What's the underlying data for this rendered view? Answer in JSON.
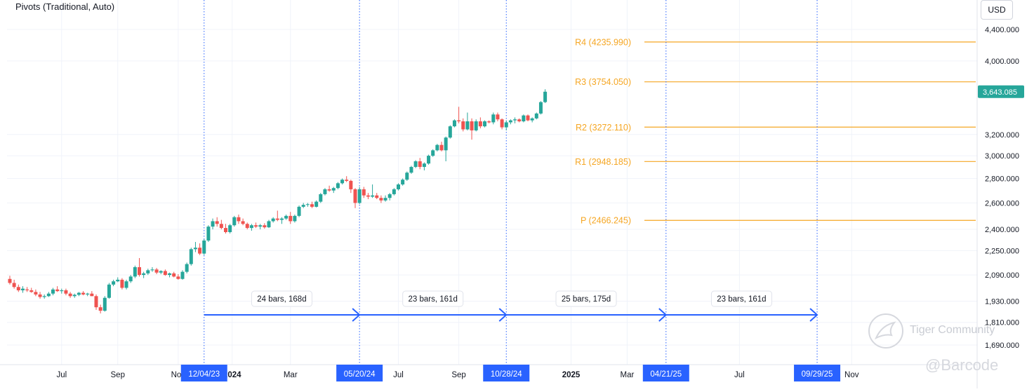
{
  "indicator_label": "Pivots (Traditional, Auto)",
  "currency": "USD",
  "watermark": {
    "community": "Tiger Community",
    "handle": "@Barcode"
  },
  "colors": {
    "up": "#26a69a",
    "down": "#ef5350",
    "pivot": "#f5a623",
    "measure": "#2962ff",
    "date_tag_bg": "#2962ff",
    "price_tag_bg": "#26a69a",
    "grid": "#f0f3fa"
  },
  "chart_data": {
    "type": "candlestick",
    "title": "",
    "y_scale": "log",
    "ylim": [
      1600,
      4800
    ],
    "y_ticks": [
      {
        "value": 4400,
        "label": "4,400.000"
      },
      {
        "value": 4000,
        "label": "4,000.000"
      },
      {
        "value": 3200,
        "label": "3,200.000"
      },
      {
        "value": 3000,
        "label": "3,000.000"
      },
      {
        "value": 2800,
        "label": "2,800.000"
      },
      {
        "value": 2600,
        "label": "2,600.000"
      },
      {
        "value": 2400,
        "label": "2,400.000"
      },
      {
        "value": 2250,
        "label": "2,250.000"
      },
      {
        "value": 2090,
        "label": "2,090.000"
      },
      {
        "value": 1930,
        "label": "1,930.000"
      },
      {
        "value": 1810,
        "label": "1,810.000"
      },
      {
        "value": 1690,
        "label": "1,690.000"
      }
    ],
    "x_labels": [
      {
        "bar": 12,
        "label": "Jul",
        "bold": false
      },
      {
        "bar": 25,
        "label": "Sep",
        "bold": false
      },
      {
        "bar": 39,
        "label": "Nov",
        "bold": false
      },
      {
        "bar": 51.5,
        "label": "2024",
        "bold": true
      },
      {
        "bar": 65,
        "label": "Mar",
        "bold": false
      },
      {
        "bar": 90,
        "label": "Jul",
        "bold": false
      },
      {
        "bar": 104,
        "label": "Sep",
        "bold": false
      },
      {
        "bar": 130,
        "label": "2025",
        "bold": true
      },
      {
        "bar": 143,
        "label": "Mar",
        "bold": false
      },
      {
        "bar": 169,
        "label": "Jul",
        "bold": false
      },
      {
        "bar": 195,
        "label": "Nov",
        "bold": false
      }
    ],
    "pivots": [
      {
        "name": "R4",
        "value": 4235.99,
        "label": "R4 (4235.990)"
      },
      {
        "name": "R3",
        "value": 3754.05,
        "label": "R3 (3754.050)"
      },
      {
        "name": "R2",
        "value": 3272.11,
        "label": "R2 (3272.110)"
      },
      {
        "name": "R1",
        "value": 2948.185,
        "label": "R1 (2948.185)"
      },
      {
        "name": "P",
        "value": 2466.245,
        "label": "P (2466.245)"
      }
    ],
    "pivot_start_bar": 131,
    "vertical_markers": [
      {
        "bar": 45,
        "label": "12/04/23"
      },
      {
        "bar": 81,
        "label": "05/20/24"
      },
      {
        "bar": 115,
        "label": "10/28/24"
      },
      {
        "bar": 152,
        "label": "04/21/25"
      },
      {
        "bar": 187,
        "label": "09/29/25"
      }
    ],
    "measure_segments": [
      {
        "from": 45,
        "to": 81,
        "label": "24 bars, 168d"
      },
      {
        "from": 81,
        "to": 115,
        "label": "23 bars, 161d"
      },
      {
        "from": 115,
        "to": 152,
        "label": "25 bars, 175d"
      },
      {
        "from": 152,
        "to": 187,
        "label": "23 bars, 161d"
      }
    ],
    "last_price": {
      "value": 3643.085,
      "label": "3,643.085"
    },
    "candles": [
      [
        2065,
        2085,
        2030,
        2040
      ],
      [
        2040,
        2060,
        2005,
        2015
      ],
      [
        2015,
        2030,
        1985,
        1995
      ],
      [
        1995,
        2020,
        1980,
        2005
      ],
      [
        2000,
        2015,
        1985,
        1995
      ],
      [
        1995,
        2010,
        1980,
        1985
      ],
      [
        1985,
        2000,
        1960,
        1970
      ],
      [
        1970,
        1985,
        1945,
        1955
      ],
      [
        1955,
        1970,
        1945,
        1960
      ],
      [
        1960,
        1985,
        1955,
        1975
      ],
      [
        1975,
        2010,
        1965,
        2000
      ],
      [
        2000,
        2020,
        1985,
        1990
      ],
      [
        1990,
        2005,
        1975,
        1995
      ],
      [
        1995,
        2005,
        1965,
        1975
      ],
      [
        1975,
        1985,
        1950,
        1960
      ],
      [
        1960,
        1975,
        1950,
        1968
      ],
      [
        1968,
        1985,
        1960,
        1980
      ],
      [
        1980,
        1990,
        1965,
        1970
      ],
      [
        1970,
        1980,
        1960,
        1975
      ],
      [
        1975,
        1990,
        1960,
        1960
      ],
      [
        1960,
        1970,
        1880,
        1895
      ],
      [
        1895,
        1910,
        1860,
        1875
      ],
      [
        1875,
        1960,
        1870,
        1950
      ],
      [
        1950,
        2040,
        1945,
        2030
      ],
      [
        2030,
        2060,
        2020,
        2050
      ],
      [
        2050,
        2075,
        2045,
        2060
      ],
      [
        2060,
        2070,
        2000,
        2010
      ],
      [
        2010,
        2060,
        2000,
        2050
      ],
      [
        2050,
        2090,
        2040,
        2080
      ],
      [
        2080,
        2150,
        2070,
        2140
      ],
      [
        2140,
        2200,
        2080,
        2090
      ],
      [
        2090,
        2110,
        2070,
        2100
      ],
      [
        2100,
        2130,
        2090,
        2120
      ],
      [
        2120,
        2140,
        2110,
        2125
      ],
      [
        2125,
        2135,
        2095,
        2105
      ],
      [
        2105,
        2120,
        2095,
        2115
      ],
      [
        2115,
        2125,
        2085,
        2090
      ],
      [
        2090,
        2105,
        2075,
        2100
      ],
      [
        2100,
        2110,
        2075,
        2080
      ],
      [
        2080,
        2095,
        2060,
        2065
      ],
      [
        2065,
        2120,
        2060,
        2110
      ],
      [
        2110,
        2170,
        2100,
        2160
      ],
      [
        2160,
        2270,
        2150,
        2260
      ],
      [
        2260,
        2310,
        2240,
        2270
      ],
      [
        2270,
        2300,
        2220,
        2230
      ],
      [
        2230,
        2330,
        2220,
        2320
      ],
      [
        2320,
        2430,
        2310,
        2420
      ],
      [
        2420,
        2480,
        2400,
        2460
      ],
      [
        2460,
        2490,
        2420,
        2440
      ],
      [
        2440,
        2470,
        2400,
        2410
      ],
      [
        2410,
        2440,
        2370,
        2380
      ],
      [
        2380,
        2440,
        2370,
        2430
      ],
      [
        2430,
        2500,
        2420,
        2490
      ],
      [
        2490,
        2510,
        2440,
        2460
      ],
      [
        2460,
        2480,
        2430,
        2440
      ],
      [
        2440,
        2450,
        2400,
        2410
      ],
      [
        2410,
        2440,
        2390,
        2430
      ],
      [
        2430,
        2450,
        2410,
        2420
      ],
      [
        2420,
        2440,
        2400,
        2430
      ],
      [
        2430,
        2445,
        2405,
        2415
      ],
      [
        2415,
        2470,
        2410,
        2460
      ],
      [
        2460,
        2490,
        2450,
        2480
      ],
      [
        2480,
        2540,
        2460,
        2470
      ],
      [
        2470,
        2490,
        2440,
        2480
      ],
      [
        2480,
        2510,
        2470,
        2500
      ],
      [
        2500,
        2530,
        2440,
        2460
      ],
      [
        2460,
        2510,
        2450,
        2500
      ],
      [
        2500,
        2580,
        2490,
        2570
      ],
      [
        2570,
        2600,
        2560,
        2585
      ],
      [
        2585,
        2600,
        2570,
        2590
      ],
      [
        2590,
        2610,
        2560,
        2570
      ],
      [
        2570,
        2620,
        2565,
        2610
      ],
      [
        2610,
        2680,
        2600,
        2670
      ],
      [
        2670,
        2720,
        2660,
        2710
      ],
      [
        2710,
        2740,
        2690,
        2700
      ],
      [
        2700,
        2730,
        2680,
        2720
      ],
      [
        2720,
        2770,
        2710,
        2760
      ],
      [
        2760,
        2800,
        2750,
        2790
      ],
      [
        2790,
        2820,
        2770,
        2780
      ],
      [
        2780,
        2790,
        2680,
        2710
      ],
      [
        2710,
        2720,
        2560,
        2600
      ],
      [
        2600,
        2730,
        2590,
        2710
      ],
      [
        2710,
        2730,
        2640,
        2660
      ],
      [
        2660,
        2680,
        2630,
        2650
      ],
      [
        2650,
        2750,
        2640,
        2660
      ],
      [
        2660,
        2680,
        2630,
        2640
      ],
      [
        2640,
        2660,
        2600,
        2620
      ],
      [
        2620,
        2660,
        2610,
        2640
      ],
      [
        2640,
        2680,
        2620,
        2670
      ],
      [
        2670,
        2720,
        2660,
        2710
      ],
      [
        2710,
        2760,
        2700,
        2750
      ],
      [
        2750,
        2800,
        2740,
        2790
      ],
      [
        2790,
        2860,
        2780,
        2850
      ],
      [
        2850,
        2910,
        2840,
        2900
      ],
      [
        2900,
        2960,
        2890,
        2950
      ],
      [
        2950,
        2980,
        2880,
        2900
      ],
      [
        2900,
        2940,
        2870,
        2930
      ],
      [
        2930,
        3010,
        2920,
        3000
      ],
      [
        3000,
        3060,
        2990,
        3050
      ],
      [
        3050,
        3110,
        3040,
        3100
      ],
      [
        3100,
        3130,
        3040,
        3050
      ],
      [
        3050,
        3180,
        2950,
        3170
      ],
      [
        3170,
        3290,
        3160,
        3280
      ],
      [
        3280,
        3350,
        3270,
        3340
      ],
      [
        3340,
        3480,
        3310,
        3330
      ],
      [
        3330,
        3360,
        3230,
        3250
      ],
      [
        3250,
        3420,
        3240,
        3330
      ],
      [
        3330,
        3360,
        3150,
        3240
      ],
      [
        3240,
        3350,
        3230,
        3330
      ],
      [
        3330,
        3370,
        3260,
        3280
      ],
      [
        3280,
        3340,
        3270,
        3330
      ],
      [
        3330,
        3340,
        3310,
        3320
      ],
      [
        3320,
        3420,
        3300,
        3400
      ],
      [
        3400,
        3420,
        3330,
        3350
      ],
      [
        3350,
        3360,
        3250,
        3270
      ],
      [
        3270,
        3340,
        3240,
        3320
      ],
      [
        3320,
        3350,
        3300,
        3340
      ],
      [
        3340,
        3370,
        3310,
        3350
      ],
      [
        3350,
        3360,
        3320,
        3330
      ],
      [
        3330,
        3400,
        3320,
        3390
      ],
      [
        3390,
        3400,
        3330,
        3340
      ],
      [
        3340,
        3370,
        3320,
        3360
      ],
      [
        3360,
        3420,
        3350,
        3410
      ],
      [
        3410,
        3540,
        3400,
        3530
      ],
      [
        3530,
        3670,
        3520,
        3643.085
      ]
    ],
    "candle_bar_start": 0
  }
}
